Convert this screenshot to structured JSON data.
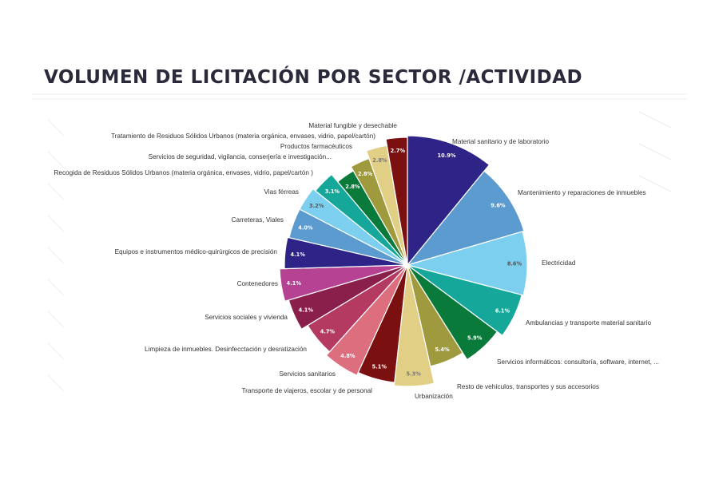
{
  "title": "VOLUMEN DE LICITACIÓN POR SECTOR /ACTIVIDAD",
  "chart_data": {
    "type": "pie",
    "title": "VOLUMEN DE LICITACIÓN POR SECTOR /ACTIVIDAD",
    "slices": [
      {
        "label": "Material sanitario y de laboratorio",
        "value": 10.9,
        "value_text": "10.9%",
        "color": "#2e2386",
        "value_color": "#ffffff"
      },
      {
        "label": "Mantenimiento y reparaciones de inmuebles",
        "value": 9.6,
        "value_text": "9.6%",
        "color": "#5b9bd0",
        "value_color": "#ffffff"
      },
      {
        "label": "Electricidad",
        "value": 8.6,
        "value_text": "8.6%",
        "color": "#7ccfee",
        "value_color": "#555555"
      },
      {
        "label": "Ambulancias y transporte material sanitario",
        "value": 6.1,
        "value_text": "6.1%",
        "color": "#15a89a",
        "value_color": "#ffffff"
      },
      {
        "label": "Servicios informáticos: consultoría, software, internet, ...",
        "value": 5.9,
        "value_text": "5.9%",
        "color": "#0a7a3a",
        "value_color": "#ffffff"
      },
      {
        "label": "Resto de vehículos, transportes y sus  accesorios",
        "value": 5.4,
        "value_text": "5.4%",
        "color": "#a09a3e",
        "value_color": "#ffffff"
      },
      {
        "label": "Urbanización",
        "value": 5.3,
        "value_text": "5.3%",
        "color": "#e2cf86",
        "value_color": "#777777"
      },
      {
        "label": "Transporte de viajeros,  escolar y de personal",
        "value": 5.1,
        "value_text": "5.1%",
        "color": "#7a1010",
        "value_color": "#ffffff"
      },
      {
        "label": "Servicios sanitarios",
        "value": 4.8,
        "value_text": "4.8%",
        "color": "#dc6e7e",
        "value_color": "#ffffff"
      },
      {
        "label": "Limpieza de inmuebles. Desinfecctación y desratización",
        "value": 4.7,
        "value_text": "4.7%",
        "color": "#b43a62",
        "value_color": "#ffffff"
      },
      {
        "label": "Servicios sociales y vivienda",
        "value": 4.1,
        "value_text": "4.1%",
        "color": "#8a1f4c",
        "value_color": "#ffffff"
      },
      {
        "label": "Contenedores",
        "value": 4.1,
        "value_text": "4.1%",
        "color": "#b54293",
        "value_color": "#ffffff"
      },
      {
        "label": "Equipos e instrumentos médico-quirúrgicos de precisión",
        "value": 4.1,
        "value_text": "4.1%",
        "color": "#2e2386",
        "value_color": "#ffffff"
      },
      {
        "label": "Carreteras, Viales",
        "value": 4.0,
        "value_text": "4.0%",
        "color": "#5b9bd0",
        "value_color": "#ffffff"
      },
      {
        "label": "Vias férreas",
        "value": 3.2,
        "value_text": "3.2%",
        "color": "#7ccfee",
        "value_color": "#555555"
      },
      {
        "label": "Recogida de  Residuos Sólidos Urbanos (materia orgánica, envases, vidrio, papel/cartón )",
        "value": 3.1,
        "value_text": "3.1%",
        "color": "#15a89a",
        "value_color": "#ffffff"
      },
      {
        "label": "Servicios de seguridad,  vigilancia,  conserjería e investigación...",
        "value": 2.8,
        "value_text": "2.8%",
        "color": "#0a7a3a",
        "value_color": "#ffffff"
      },
      {
        "label": "Tratamiento de Residuos Sólidos Urbanos (materia orgánica, envases, vidrio, papel/cartón)",
        "value": 2.8,
        "value_text": "2.8%",
        "color": "#a09a3e",
        "value_color": "#ffffff"
      },
      {
        "label": "Productos farmacéuticos",
        "value": 2.8,
        "value_text": "2.8%",
        "color": "#e2cf86",
        "value_color": "#777777"
      },
      {
        "label": "Material fungible y desechable",
        "value": 2.7,
        "value_text": "2.7%",
        "color": "#7a1010",
        "value_color": "#ffffff"
      }
    ]
  }
}
